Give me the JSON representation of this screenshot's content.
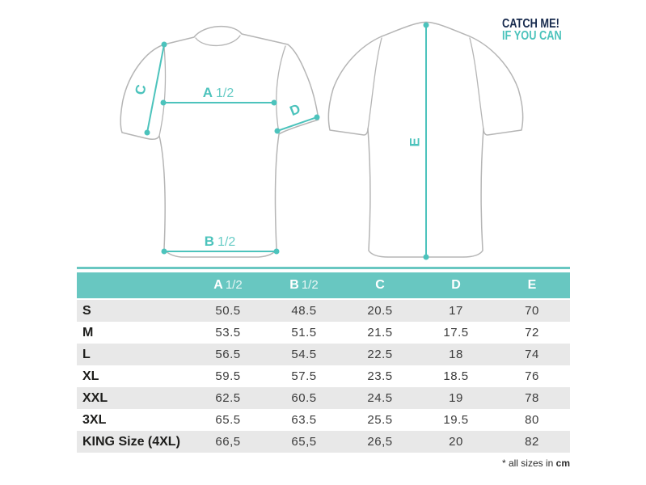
{
  "logo": {
    "line1": "CATCH ME!",
    "line2": "IF YOU CAN"
  },
  "diagram": {
    "measurements": {
      "a": {
        "letter": "A",
        "fraction": "1/2"
      },
      "b": {
        "letter": "B",
        "fraction": "1/2"
      },
      "c": {
        "letter": "C"
      },
      "d": {
        "letter": "D"
      },
      "e": {
        "letter": "E"
      }
    }
  },
  "table": {
    "columns": [
      {
        "letter": "A",
        "fraction": "1/2"
      },
      {
        "letter": "B",
        "fraction": "1/2"
      },
      {
        "letter": "C",
        "fraction": ""
      },
      {
        "letter": "D",
        "fraction": ""
      },
      {
        "letter": "E",
        "fraction": ""
      }
    ],
    "rows": [
      {
        "size": "S",
        "values": [
          "50.5",
          "48.5",
          "20.5",
          "17",
          "70"
        ]
      },
      {
        "size": "M",
        "values": [
          "53.5",
          "51.5",
          "21.5",
          "17.5",
          "72"
        ]
      },
      {
        "size": "L",
        "values": [
          "56.5",
          "54.5",
          "22.5",
          "18",
          "74"
        ]
      },
      {
        "size": "XL",
        "values": [
          "59.5",
          "57.5",
          "23.5",
          "18.5",
          "76"
        ]
      },
      {
        "size": "XXL",
        "values": [
          "62.5",
          "60.5",
          "24.5",
          "19",
          "78"
        ]
      },
      {
        "size": "3XL",
        "values": [
          "65.5",
          "63.5",
          "25.5",
          "19.5",
          "80"
        ]
      },
      {
        "size": "KING Size (4XL)",
        "values": [
          "66,5",
          "65,5",
          "26,5",
          "20",
          "82"
        ]
      }
    ]
  },
  "footnote": {
    "prefix": "* all sizes in ",
    "unit": "cm"
  },
  "colors": {
    "teal_line": "#4cc3bc",
    "teal_header": "#68c7c1",
    "navy": "#172a4d",
    "row_gray": "#e8e8e8",
    "outline_gray": "#b5b5b5",
    "text_dark": "#1d1d1b",
    "number_gray": "#3c3c3c"
  }
}
